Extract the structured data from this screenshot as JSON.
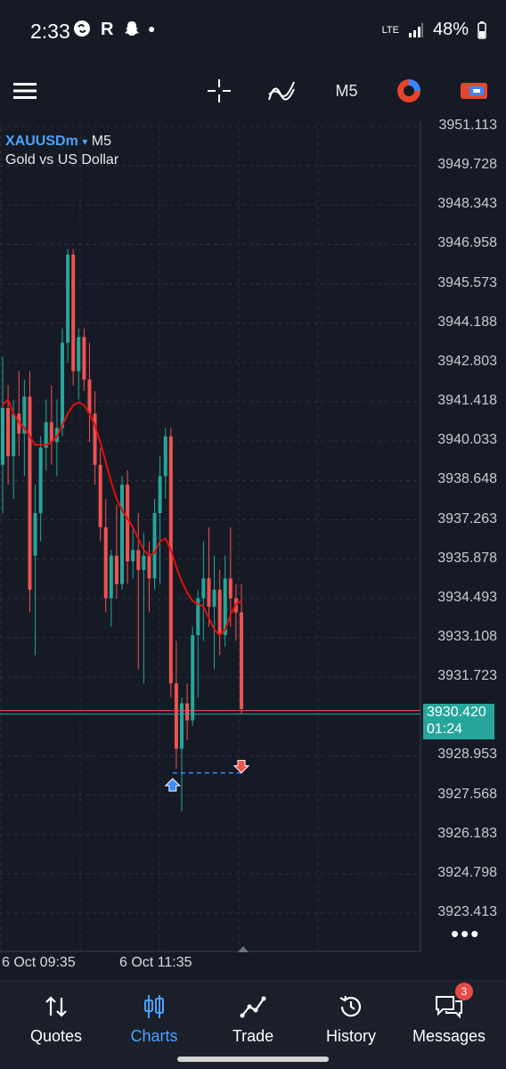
{
  "status_bar": {
    "time": "2:33",
    "network": "LTE",
    "battery": "48%"
  },
  "toolbar": {
    "menu_icon": "hamburger-icon",
    "crosshair_icon": "crosshair-icon",
    "indicators_icon": "indicators-icon",
    "timeframe": "M5",
    "trade_icon": "one-click-trading-icon",
    "link_icon": "account-link-icon"
  },
  "chart": {
    "symbol": "XAUUSDm",
    "symbol_arrow": "▾",
    "timeframe": "M5",
    "description": "Gold vs US Dollar",
    "price_labels": [
      "3951.113",
      "3949.728",
      "3948.343",
      "3946.958",
      "3945.573",
      "3944.188",
      "3942.803",
      "3941.418",
      "3940.033",
      "3938.648",
      "3937.263",
      "3935.878",
      "3934.493",
      "3933.108",
      "3931.723",
      "3928.953",
      "3927.568",
      "3926.183",
      "3924.798",
      "3923.413"
    ],
    "current_price": "3930.420",
    "countdown": "01:24",
    "time_labels": [
      "6 Oct 09:35",
      "6 Oct 11:35"
    ],
    "more": "•••",
    "colors": {
      "bull": "#26a69a",
      "bear": "#ef5350",
      "ma": "#e01010",
      "grid": "#2a3040",
      "bg": "#161a25",
      "buy_marker": "#3d8bfd",
      "sell_marker": "#ef5350"
    }
  },
  "chart_data": {
    "type": "candlestick",
    "symbol": "XAUUSDm",
    "timeframe": "M5",
    "ylim": [
      3922.5,
      3951.5
    ],
    "candles": [
      {
        "o": 3939.2,
        "h": 3943.0,
        "l": 3937.5,
        "c": 3941.2
      },
      {
        "o": 3941.2,
        "h": 3942.0,
        "l": 3938.5,
        "c": 3939.5
      },
      {
        "o": 3939.5,
        "h": 3941.5,
        "l": 3938.0,
        "c": 3941.0
      },
      {
        "o": 3941.0,
        "h": 3942.5,
        "l": 3939.5,
        "c": 3940.3
      },
      {
        "o": 3940.3,
        "h": 3942.2,
        "l": 3938.8,
        "c": 3941.6
      },
      {
        "o": 3941.6,
        "h": 3942.5,
        "l": 3934.0,
        "c": 3934.8
      },
      {
        "o": 3936.0,
        "h": 3938.5,
        "l": 3932.5,
        "c": 3937.5
      },
      {
        "o": 3937.5,
        "h": 3940.2,
        "l": 3936.5,
        "c": 3939.8
      },
      {
        "o": 3939.8,
        "h": 3941.5,
        "l": 3939.0,
        "c": 3940.7
      },
      {
        "o": 3940.7,
        "h": 3942.0,
        "l": 3939.2,
        "c": 3940.0
      },
      {
        "o": 3940.0,
        "h": 3941.5,
        "l": 3938.8,
        "c": 3940.5
      },
      {
        "o": 3940.5,
        "h": 3944.0,
        "l": 3940.2,
        "c": 3943.5
      },
      {
        "o": 3943.5,
        "h": 3946.8,
        "l": 3942.8,
        "c": 3946.6
      },
      {
        "o": 3946.6,
        "h": 3946.8,
        "l": 3942.0,
        "c": 3942.5
      },
      {
        "o": 3942.5,
        "h": 3944.0,
        "l": 3941.5,
        "c": 3943.7
      },
      {
        "o": 3943.7,
        "h": 3944.0,
        "l": 3941.8,
        "c": 3942.2
      },
      {
        "o": 3942.2,
        "h": 3943.5,
        "l": 3940.0,
        "c": 3941.0
      },
      {
        "o": 3941.0,
        "h": 3941.8,
        "l": 3938.5,
        "c": 3939.2
      },
      {
        "o": 3939.2,
        "h": 3939.8,
        "l": 3936.5,
        "c": 3937.0
      },
      {
        "o": 3937.0,
        "h": 3938.0,
        "l": 3934.0,
        "c": 3934.5
      },
      {
        "o": 3934.5,
        "h": 3936.2,
        "l": 3933.5,
        "c": 3936.0
      },
      {
        "o": 3936.0,
        "h": 3937.8,
        "l": 3934.5,
        "c": 3935.0
      },
      {
        "o": 3935.0,
        "h": 3938.8,
        "l": 3934.8,
        "c": 3938.5
      },
      {
        "o": 3938.5,
        "h": 3939.0,
        "l": 3935.0,
        "c": 3935.8
      },
      {
        "o": 3935.8,
        "h": 3937.0,
        "l": 3935.2,
        "c": 3936.2
      },
      {
        "o": 3936.2,
        "h": 3937.5,
        "l": 3932.0,
        "c": 3935.5
      },
      {
        "o": 3935.5,
        "h": 3936.8,
        "l": 3931.5,
        "c": 3936.0
      },
      {
        "o": 3936.0,
        "h": 3936.5,
        "l": 3934.0,
        "c": 3935.2
      },
      {
        "o": 3935.2,
        "h": 3938.0,
        "l": 3934.8,
        "c": 3937.5
      },
      {
        "o": 3937.5,
        "h": 3939.5,
        "l": 3935.0,
        "c": 3938.8
      },
      {
        "o": 3938.8,
        "h": 3940.5,
        "l": 3938.0,
        "c": 3940.2
      },
      {
        "o": 3940.2,
        "h": 3940.5,
        "l": 3931.0,
        "c": 3931.5
      },
      {
        "o": 3931.5,
        "h": 3933.0,
        "l": 3928.5,
        "c": 3929.2
      },
      {
        "o": 3929.2,
        "h": 3931.0,
        "l": 3927.0,
        "c": 3930.8
      },
      {
        "o": 3930.8,
        "h": 3931.5,
        "l": 3929.5,
        "c": 3930.2
      },
      {
        "o": 3930.2,
        "h": 3933.5,
        "l": 3930.0,
        "c": 3933.2
      },
      {
        "o": 3933.2,
        "h": 3934.8,
        "l": 3931.0,
        "c": 3934.5
      },
      {
        "o": 3934.5,
        "h": 3936.5,
        "l": 3933.0,
        "c": 3935.2
      },
      {
        "o": 3935.2,
        "h": 3937.0,
        "l": 3933.5,
        "c": 3934.2
      },
      {
        "o": 3934.2,
        "h": 3936.0,
        "l": 3932.0,
        "c": 3934.8
      },
      {
        "o": 3934.8,
        "h": 3935.5,
        "l": 3932.5,
        "c": 3933.2
      },
      {
        "o": 3933.2,
        "h": 3936.0,
        "l": 3932.8,
        "c": 3935.2
      },
      {
        "o": 3935.2,
        "h": 3937.0,
        "l": 3933.5,
        "c": 3934.5
      },
      {
        "o": 3934.5,
        "h": 3935.0,
        "l": 3933.0,
        "c": 3934.0
      },
      {
        "o": 3934.0,
        "h": 3935.0,
        "l": 3930.4,
        "c": 3930.6
      }
    ],
    "ma": [
      3941.3,
      3941.5,
      3941.0,
      3940.7,
      3940.5,
      3940.2,
      3939.9,
      3939.9,
      3939.9,
      3940.0,
      3940.2,
      3940.6,
      3941.0,
      3941.3,
      3941.4,
      3941.3,
      3941.0,
      3940.6,
      3940.0,
      3939.3,
      3938.6,
      3938.0,
      3937.6,
      3937.3,
      3937.0,
      3936.6,
      3936.2,
      3936.0,
      3936.1,
      3936.5,
      3936.6,
      3936.2,
      3935.6,
      3935.1,
      3934.7,
      3934.4,
      3934.3,
      3934.2,
      3933.8,
      3933.4,
      3933.2,
      3933.4,
      3933.9,
      3934.3,
      3934.4
    ],
    "buy_marker_price": 3927.9,
    "sell_marker_price": 3928.6,
    "current_price": 3930.42,
    "price_ticks": [
      3951.113,
      3949.728,
      3948.343,
      3946.958,
      3945.573,
      3944.188,
      3942.803,
      3941.418,
      3940.033,
      3938.648,
      3937.263,
      3935.878,
      3934.493,
      3933.108,
      3931.723,
      3928.953,
      3927.568,
      3926.183,
      3924.798,
      3923.413
    ],
    "x_labels": [
      "6 Oct 09:35",
      "6 Oct 11:35"
    ]
  },
  "bottom_nav": [
    {
      "label": "Quotes",
      "icon": "quotes-arrows-icon",
      "active": false
    },
    {
      "label": "Charts",
      "icon": "candlestick-icon",
      "active": true
    },
    {
      "label": "Trade",
      "icon": "trade-line-icon",
      "active": false
    },
    {
      "label": "History",
      "icon": "history-clock-icon",
      "active": false
    },
    {
      "label": "Messages",
      "icon": "messages-icon",
      "active": false,
      "badge": "3"
    }
  ]
}
